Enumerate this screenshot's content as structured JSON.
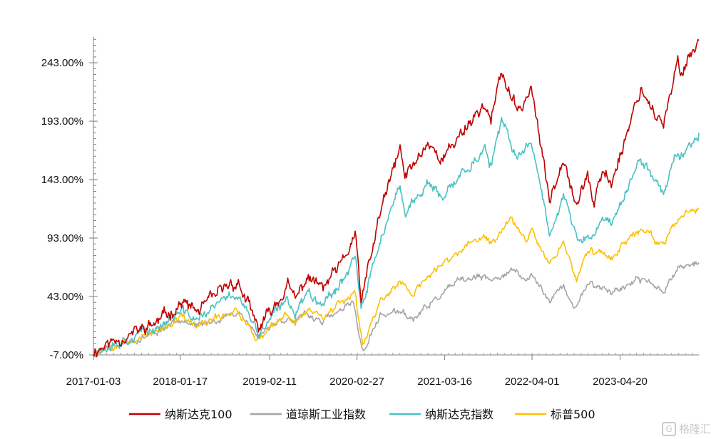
{
  "chart_data": {
    "type": "line",
    "title": "",
    "xlabel": "",
    "ylabel": "",
    "x_ticks": [
      "2017-01-03",
      "2018-01-17",
      "2019-02-11",
      "2020-02-27",
      "2021-03-16",
      "2022-04-01",
      "2023-04-20"
    ],
    "x_range": [
      "2017-01-03",
      "2024-03-29"
    ],
    "y_ticks": [
      "243.00%",
      "193.00%",
      "143.00%",
      "93.00%",
      "43.00%",
      "-7.00%"
    ],
    "ylim": [
      -7,
      265
    ],
    "grid": false,
    "legend_position": "bottom",
    "colors": {
      "纳斯达克100": "#c00000",
      "道琼斯工业指数": "#a5a5a5",
      "纳斯达克指数": "#4bc1c2",
      "标普500": "#ffc000"
    },
    "series": [
      {
        "name": "纳斯达克100",
        "points": [
          [
            "2017-01-03",
            -4
          ],
          [
            "2017-04-01",
            5
          ],
          [
            "2017-07-01",
            12
          ],
          [
            "2017-10-01",
            20
          ],
          [
            "2018-01-26",
            38
          ],
          [
            "2018-04-02",
            30
          ],
          [
            "2018-08-29",
            55
          ],
          [
            "2018-10-01",
            53
          ],
          [
            "2018-12-24",
            15
          ],
          [
            "2019-02-11",
            29
          ],
          [
            "2019-05-01",
            52
          ],
          [
            "2019-06-03",
            40
          ],
          [
            "2019-07-26",
            60
          ],
          [
            "2019-10-02",
            50
          ],
          [
            "2019-12-31",
            73
          ],
          [
            "2020-02-19",
            97
          ],
          [
            "2020-03-16",
            38
          ],
          [
            "2020-06-08",
            115
          ],
          [
            "2020-09-02",
            170
          ],
          [
            "2020-09-23",
            145
          ],
          [
            "2021-01-01",
            175
          ],
          [
            "2021-03-08",
            160
          ],
          [
            "2021-06-01",
            185
          ],
          [
            "2021-09-07",
            208
          ],
          [
            "2021-10-04",
            193
          ],
          [
            "2021-11-19",
            235
          ],
          [
            "2022-01-27",
            200
          ],
          [
            "2022-03-29",
            222
          ],
          [
            "2022-06-16",
            125
          ],
          [
            "2022-08-16",
            165
          ],
          [
            "2022-10-13",
            120
          ],
          [
            "2022-11-30",
            150
          ],
          [
            "2022-12-28",
            118
          ],
          [
            "2023-02-02",
            150
          ],
          [
            "2023-03-13",
            140
          ],
          [
            "2023-07-19",
            222
          ],
          [
            "2023-10-27",
            188
          ],
          [
            "2023-12-28",
            243
          ],
          [
            "2024-01-05",
            235
          ],
          [
            "2024-03-29",
            262
          ]
        ]
      },
      {
        "name": "道琼斯工业指数",
        "points": [
          [
            "2017-01-03",
            -4
          ],
          [
            "2017-04-01",
            2
          ],
          [
            "2017-07-01",
            5
          ],
          [
            "2017-10-01",
            12
          ],
          [
            "2018-01-26",
            25
          ],
          [
            "2018-04-02",
            17
          ],
          [
            "2018-10-03",
            30
          ],
          [
            "2018-12-24",
            8
          ],
          [
            "2019-02-11",
            18
          ],
          [
            "2019-05-01",
            25
          ],
          [
            "2019-06-03",
            20
          ],
          [
            "2019-07-16",
            28
          ],
          [
            "2019-10-02",
            22
          ],
          [
            "2019-12-31",
            32
          ],
          [
            "2020-02-12",
            38
          ],
          [
            "2020-03-23",
            -5
          ],
          [
            "2020-06-08",
            27
          ],
          [
            "2020-09-02",
            30
          ],
          [
            "2020-10-30",
            23
          ],
          [
            "2021-01-01",
            35
          ],
          [
            "2021-05-07",
            55
          ],
          [
            "2021-08-16",
            60
          ],
          [
            "2021-10-04",
            56
          ],
          [
            "2021-12-31",
            66
          ],
          [
            "2022-03-08",
            56
          ],
          [
            "2022-03-29",
            62
          ],
          [
            "2022-06-17",
            40
          ],
          [
            "2022-08-16",
            52
          ],
          [
            "2022-09-30",
            32
          ],
          [
            "2022-12-01",
            55
          ],
          [
            "2023-03-15",
            47
          ],
          [
            "2023-08-01",
            58
          ],
          [
            "2023-10-27",
            48
          ],
          [
            "2023-12-28",
            68
          ],
          [
            "2024-03-29",
            72
          ]
        ]
      },
      {
        "name": "纳斯达克指数",
        "points": [
          [
            "2017-01-03",
            -4
          ],
          [
            "2017-04-01",
            3
          ],
          [
            "2017-07-01",
            9
          ],
          [
            "2017-10-01",
            16
          ],
          [
            "2018-01-26",
            30
          ],
          [
            "2018-04-02",
            23
          ],
          [
            "2018-08-29",
            45
          ],
          [
            "2018-10-01",
            43
          ],
          [
            "2018-12-24",
            10
          ],
          [
            "2019-02-11",
            23
          ],
          [
            "2019-05-01",
            40
          ],
          [
            "2019-06-03",
            30
          ],
          [
            "2019-07-26",
            47
          ],
          [
            "2019-10-02",
            38
          ],
          [
            "2019-12-31",
            58
          ],
          [
            "2020-02-19",
            80
          ],
          [
            "2020-03-16",
            30
          ],
          [
            "2020-06-08",
            92
          ],
          [
            "2020-09-02",
            135
          ],
          [
            "2020-09-23",
            115
          ],
          [
            "2021-01-01",
            140
          ],
          [
            "2021-03-08",
            125
          ],
          [
            "2021-06-01",
            150
          ],
          [
            "2021-09-07",
            168
          ],
          [
            "2021-10-04",
            155
          ],
          [
            "2021-11-19",
            192
          ],
          [
            "2022-01-27",
            160
          ],
          [
            "2022-03-29",
            178
          ],
          [
            "2022-06-16",
            98
          ],
          [
            "2022-08-16",
            130
          ],
          [
            "2022-10-13",
            92
          ],
          [
            "2022-12-28",
            93
          ],
          [
            "2023-02-02",
            112
          ],
          [
            "2023-03-13",
            105
          ],
          [
            "2023-07-19",
            160
          ],
          [
            "2023-10-27",
            133
          ],
          [
            "2023-12-28",
            168
          ],
          [
            "2024-01-05",
            162
          ],
          [
            "2024-03-29",
            183
          ]
        ]
      },
      {
        "name": "标普500",
        "points": [
          [
            "2017-01-03",
            -4
          ],
          [
            "2017-04-01",
            2
          ],
          [
            "2017-07-01",
            6
          ],
          [
            "2017-10-01",
            12
          ],
          [
            "2018-01-26",
            25
          ],
          [
            "2018-04-02",
            17
          ],
          [
            "2018-09-20",
            32
          ],
          [
            "2018-12-24",
            5
          ],
          [
            "2019-02-11",
            15
          ],
          [
            "2019-05-01",
            28
          ],
          [
            "2019-06-03",
            20
          ],
          [
            "2019-07-26",
            32
          ],
          [
            "2019-10-02",
            27
          ],
          [
            "2019-12-31",
            40
          ],
          [
            "2020-02-19",
            48
          ],
          [
            "2020-03-23",
            0
          ],
          [
            "2020-06-08",
            40
          ],
          [
            "2020-09-02",
            55
          ],
          [
            "2020-10-30",
            45
          ],
          [
            "2021-01-01",
            60
          ],
          [
            "2021-05-07",
            80
          ],
          [
            "2021-09-02",
            95
          ],
          [
            "2021-10-04",
            88
          ],
          [
            "2021-12-31",
            110
          ],
          [
            "2022-03-08",
            92
          ],
          [
            "2022-03-29",
            103
          ],
          [
            "2022-06-16",
            70
          ],
          [
            "2022-08-16",
            90
          ],
          [
            "2022-10-12",
            58
          ],
          [
            "2022-12-01",
            82
          ],
          [
            "2023-03-13",
            78
          ],
          [
            "2023-07-31",
            102
          ],
          [
            "2023-10-27",
            85
          ],
          [
            "2023-12-28",
            110
          ],
          [
            "2024-03-29",
            118
          ]
        ]
      }
    ]
  }
}
